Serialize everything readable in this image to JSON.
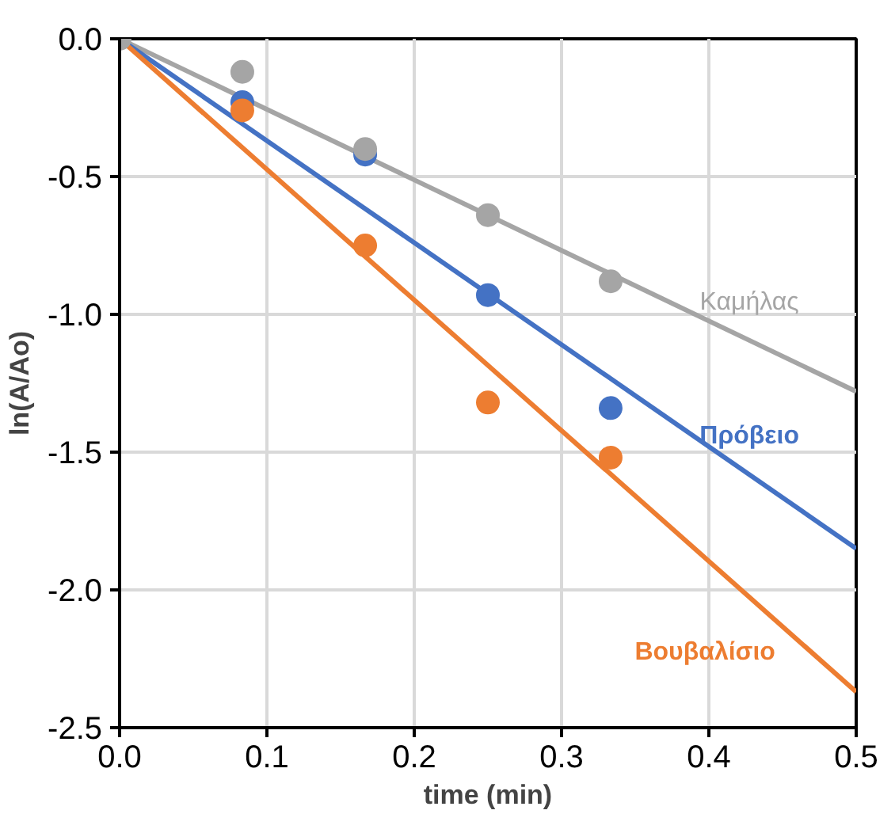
{
  "chart_data": {
    "type": "scatter",
    "xlabel": "time (min)",
    "ylabel": "ln(A/Ao)",
    "xlim": [
      0,
      0.5
    ],
    "ylim": [
      -2.5,
      0
    ],
    "xticks": [
      {
        "value": 0,
        "label": "0.0"
      },
      0.1,
      0.2,
      0.3,
      0.4,
      0.5
    ],
    "yticks": [
      {
        "value": -2.5,
        "label": "-2.5"
      },
      {
        "value": -2.0,
        "label": "-2.0"
      },
      {
        "value": -1.5,
        "label": "-1.5"
      },
      {
        "value": -1.0,
        "label": "-1.0"
      },
      {
        "value": -0.5,
        "label": "-0.5"
      },
      {
        "value": 0,
        "label": "0.0"
      }
    ],
    "grid": true,
    "marker": "circle",
    "series": [
      {
        "color": "#a5a5a5",
        "x": [
          0,
          0.0833,
          0.1667,
          0.25,
          0.3333
        ],
        "values": [
          0,
          -0.12,
          -0.4,
          -0.64,
          -0.88
        ]
      },
      {
        "color": "#4472c4",
        "x": [
          0.0833,
          0.1667,
          0.25,
          0.3333
        ],
        "values": [
          -0.23,
          -0.42,
          -0.93,
          -1.34
        ]
      },
      {
        "color": "#ed7d31",
        "x": [
          0.0833,
          0.1667,
          0.25,
          0.3333
        ],
        "values": [
          -0.26,
          -0.75,
          -1.32,
          -1.52
        ]
      },
      {
        "type": "line",
        "marker": "none",
        "name": "Καμήλας",
        "color": "#a5a5a5",
        "x": [
          0,
          0.5
        ],
        "values": [
          0,
          -1.28
        ]
      },
      {
        "type": "line",
        "marker": "none",
        "name": "Πρόβειο",
        "color": "#4472c4",
        "x": [
          0,
          0.5
        ],
        "values": [
          0,
          -1.85
        ]
      },
      {
        "type": "line",
        "marker": "none",
        "name": "Βουβαλίσιο",
        "color": "#ed7d31",
        "x": [
          0,
          0.5
        ],
        "values": [
          0,
          -2.37
        ]
      }
    ]
  }
}
